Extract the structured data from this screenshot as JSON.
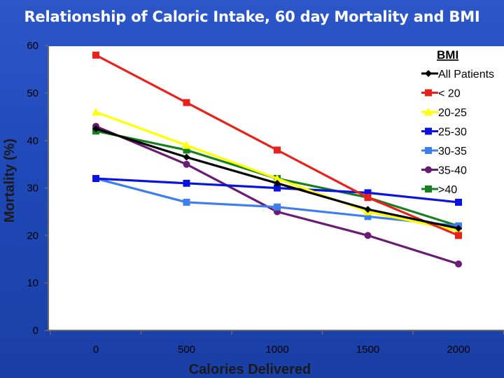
{
  "slide": {
    "title": "Relationship of Caloric Intake, 60 day Mortality and BMI"
  },
  "chart_data": {
    "type": "line",
    "title": "Relationship of Caloric Intake, 60 day Mortality and BMI",
    "xlabel": "Calories Delivered",
    "ylabel": "Mortality (%)",
    "x": [
      0,
      500,
      1000,
      1500,
      2000
    ],
    "x_tick_labels": [
      "0",
      "500",
      "1000",
      "1500",
      "2000"
    ],
    "y_tick_labels": [
      "0",
      "10",
      "20",
      "30",
      "40",
      "50",
      "60"
    ],
    "ylim": [
      0,
      60
    ],
    "grid": false,
    "legend_title": "BMI",
    "legend_position": "top-right",
    "series": [
      {
        "name": "All Patients",
        "values": [
          42.5,
          36.5,
          31,
          25.5,
          21.5
        ],
        "color": "#000000",
        "marker": "diamond"
      },
      {
        "name": "< 20",
        "values": [
          58,
          48,
          38,
          28,
          20
        ],
        "color": "#e8221b",
        "marker": "square"
      },
      {
        "name": "20-25",
        "values": [
          46,
          39,
          32,
          25,
          21
        ],
        "color": "#ffff00",
        "marker": "triangle"
      },
      {
        "name": "25-30",
        "values": [
          32,
          31,
          30,
          29,
          27
        ],
        "color": "#0a12e0",
        "marker": "square"
      },
      {
        "name": "30-35",
        "values": [
          32,
          27,
          26,
          24,
          22
        ],
        "color": "#3d7ef0",
        "marker": "square"
      },
      {
        "name": "35-40",
        "values": [
          43,
          35,
          25,
          20,
          14
        ],
        "color": "#6a1b73",
        "marker": "circle"
      },
      {
        "name": ">40",
        "values": [
          42,
          38,
          32,
          28,
          22
        ],
        "color": "#14801f",
        "marker": "square"
      }
    ]
  }
}
